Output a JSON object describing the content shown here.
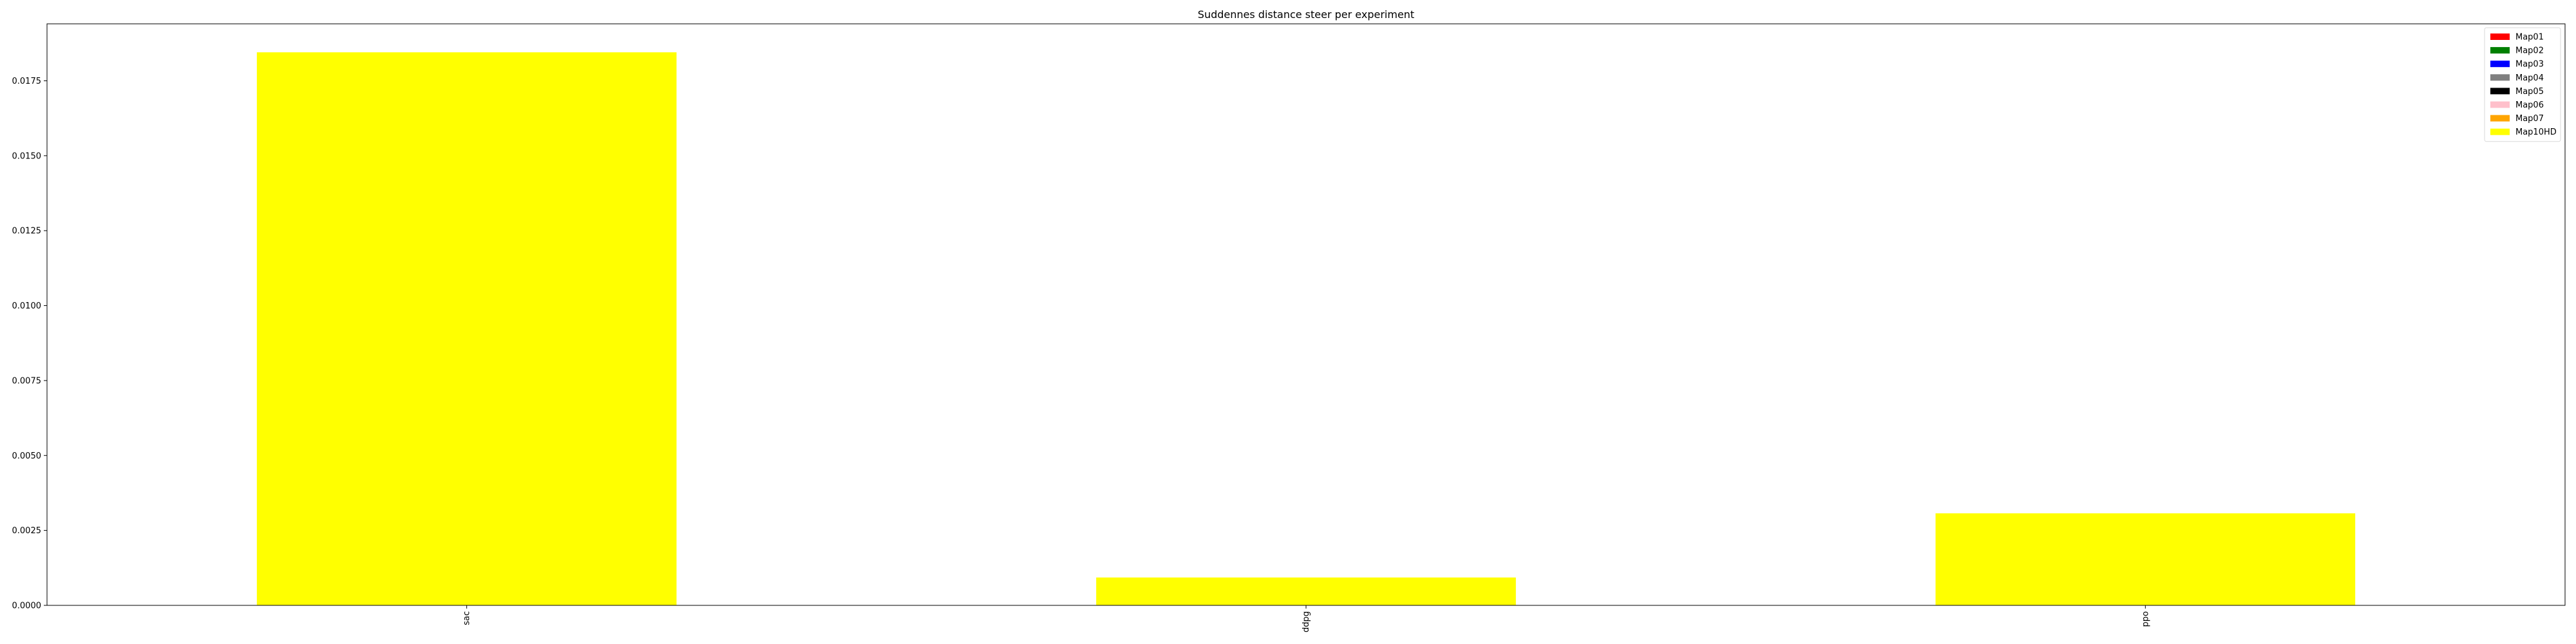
{
  "chart_data": {
    "type": "bar",
    "title": "Suddennes distance steer per experiment",
    "xlabel": "",
    "ylabel": "",
    "categories": [
      "sac",
      "ddpg",
      "ppo"
    ],
    "series": [
      {
        "name": "Map01",
        "color": "#ff0000",
        "values": [
          0,
          0,
          0
        ]
      },
      {
        "name": "Map02",
        "color": "#008000",
        "values": [
          0,
          0,
          0
        ]
      },
      {
        "name": "Map03",
        "color": "#0000ff",
        "values": [
          0,
          0,
          0
        ]
      },
      {
        "name": "Map04",
        "color": "#808080",
        "values": [
          0,
          0,
          0
        ]
      },
      {
        "name": "Map05",
        "color": "#000000",
        "values": [
          0,
          0,
          0
        ]
      },
      {
        "name": "Map06",
        "color": "#ffc0cb",
        "values": [
          0,
          0,
          0
        ]
      },
      {
        "name": "Map07",
        "color": "#ffa500",
        "values": [
          0,
          0,
          0
        ]
      },
      {
        "name": "Map10HD",
        "color": "#ffff00",
        "values": [
          0.01845,
          0.00093,
          0.00307
        ]
      }
    ],
    "ylim": [
      0,
      0.0194
    ],
    "yticks": [
      "0.0000",
      "0.0025",
      "0.0050",
      "0.0075",
      "0.0100",
      "0.0125",
      "0.0150",
      "0.0175"
    ],
    "grid": false,
    "legend_position": "top-right"
  }
}
